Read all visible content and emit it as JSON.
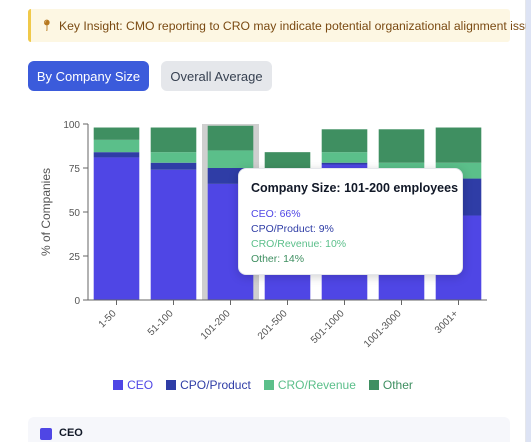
{
  "insight": {
    "icon": "pin-icon",
    "text": "Key Insight: CMO reporting to CRO may indicate potential organizational alignment issues"
  },
  "toggle": {
    "by_size_label": "By Company Size",
    "overall_label": "Overall Average",
    "active": "by_size"
  },
  "chart_data": {
    "type": "bar",
    "stacked": true,
    "categories": [
      "1-50",
      "51-100",
      "101-200",
      "201-500",
      "501-1000",
      "1001-3000",
      "3001+"
    ],
    "series": [
      {
        "name": "CEO",
        "color": "#4f46e5",
        "values": [
          81,
          74,
          66,
          55,
          77,
          42,
          48
        ]
      },
      {
        "name": "CPO/Product",
        "color": "#2f3da6",
        "values": [
          3,
          4,
          9,
          7,
          1,
          20,
          21
        ]
      },
      {
        "name": "CRO/Revenue",
        "color": "#5bbf8a",
        "values": [
          7,
          6,
          10,
          8,
          6,
          16,
          9
        ]
      },
      {
        "name": "Other",
        "color": "#3f8f61",
        "values": [
          7,
          14,
          14,
          14,
          13,
          19,
          20
        ]
      }
    ],
    "ylabel": "% of Companies",
    "ylim": [
      0,
      100
    ],
    "yticks": [
      0,
      25,
      50,
      75,
      100
    ],
    "highlighted_category": "101-200"
  },
  "tooltip": {
    "title": "Company Size: 101-200 employees",
    "lines": [
      {
        "text": "CEO: 66%",
        "color": "#4f46e5"
      },
      {
        "text": "CPO/Product: 9%",
        "color": "#2f3da6"
      },
      {
        "text": "CRO/Revenue: 10%",
        "color": "#5bbf8a"
      },
      {
        "text": "Other: 14%",
        "color": "#3f8f61"
      }
    ]
  },
  "detail": {
    "label": "CEO"
  }
}
